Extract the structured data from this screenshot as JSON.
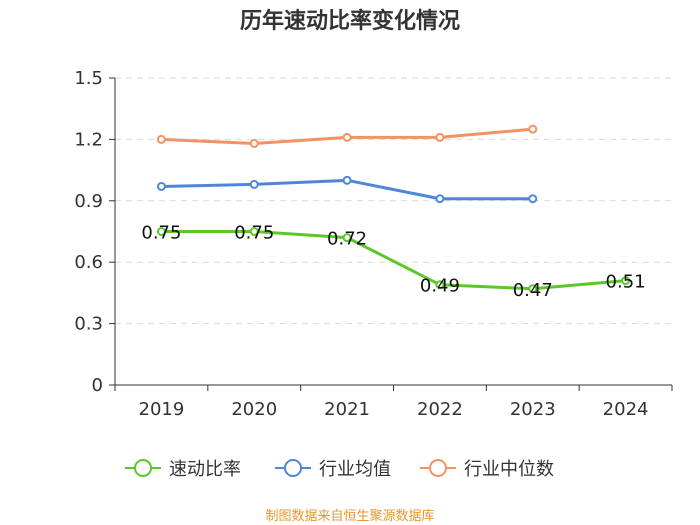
{
  "chart_data": {
    "type": "line",
    "title": "历年速动比率变化情况",
    "categories": [
      "2019",
      "2020",
      "2021",
      "2022",
      "2023",
      "2024"
    ],
    "ylim": [
      0,
      1.5
    ],
    "yticks": [
      0,
      0.3,
      0.6,
      0.9,
      1.2,
      1.5
    ],
    "ytick_labels": [
      "0",
      "0.3",
      "0.6",
      "0.9",
      "1.2",
      "1.5"
    ],
    "grid": true,
    "legend_position": "bottom-center",
    "series": [
      {
        "name": "速动比率",
        "color": "#5cc72a",
        "values": [
          0.75,
          0.75,
          0.72,
          0.49,
          0.47,
          0.51
        ],
        "labels": [
          "0.75",
          "0.75",
          "0.72",
          "0.49",
          "0.47",
          "0.51"
        ],
        "show_labels": true
      },
      {
        "name": "行业均值",
        "color": "#4f86d9",
        "values": [
          0.97,
          0.98,
          1.0,
          0.91,
          0.91,
          null
        ],
        "show_labels": false
      },
      {
        "name": "行业中位数",
        "color": "#f59262",
        "values": [
          1.2,
          1.18,
          1.21,
          1.21,
          1.25,
          null
        ],
        "show_labels": false
      }
    ]
  },
  "source": "制图数据来自恒生聚源数据库"
}
